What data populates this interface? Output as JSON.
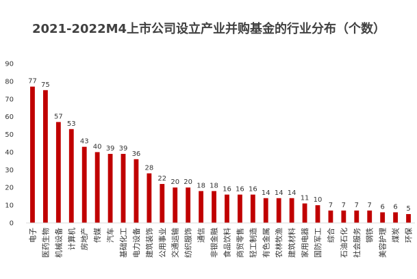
{
  "chart_data": {
    "type": "bar",
    "title": "2021-2022M4上市公司设立产业并购基金的行业分布（个数）",
    "categories": [
      "电子",
      "医药生物",
      "机械设备",
      "计算机",
      "房地产",
      "传媒",
      "汽车",
      "基础化工",
      "电力设备",
      "建筑装饰",
      "公用事业",
      "交通运输",
      "纺织服饰",
      "通信",
      "非银金融",
      "食品饮料",
      "商贸零售",
      "轻工制造",
      "有色金属",
      "农林牧渔",
      "建筑材料",
      "家用电器",
      "国防军工",
      "综合",
      "石油石化",
      "社会服务",
      "钢铁",
      "美容护理",
      "煤炭",
      "环保"
    ],
    "values": [
      77,
      75,
      57,
      53,
      43,
      40,
      39,
      39,
      36,
      28,
      22,
      20,
      20,
      18,
      18,
      16,
      16,
      16,
      14,
      14,
      14,
      11,
      10,
      7,
      7,
      7,
      7,
      6,
      6,
      5
    ],
    "ylim": [
      0,
      90
    ],
    "yticks": [
      0,
      10,
      20,
      30,
      40,
      50,
      60,
      70,
      80,
      90
    ],
    "grid": false,
    "legend": "none",
    "bar_color": "#C00000",
    "xlabel": "",
    "ylabel": ""
  }
}
